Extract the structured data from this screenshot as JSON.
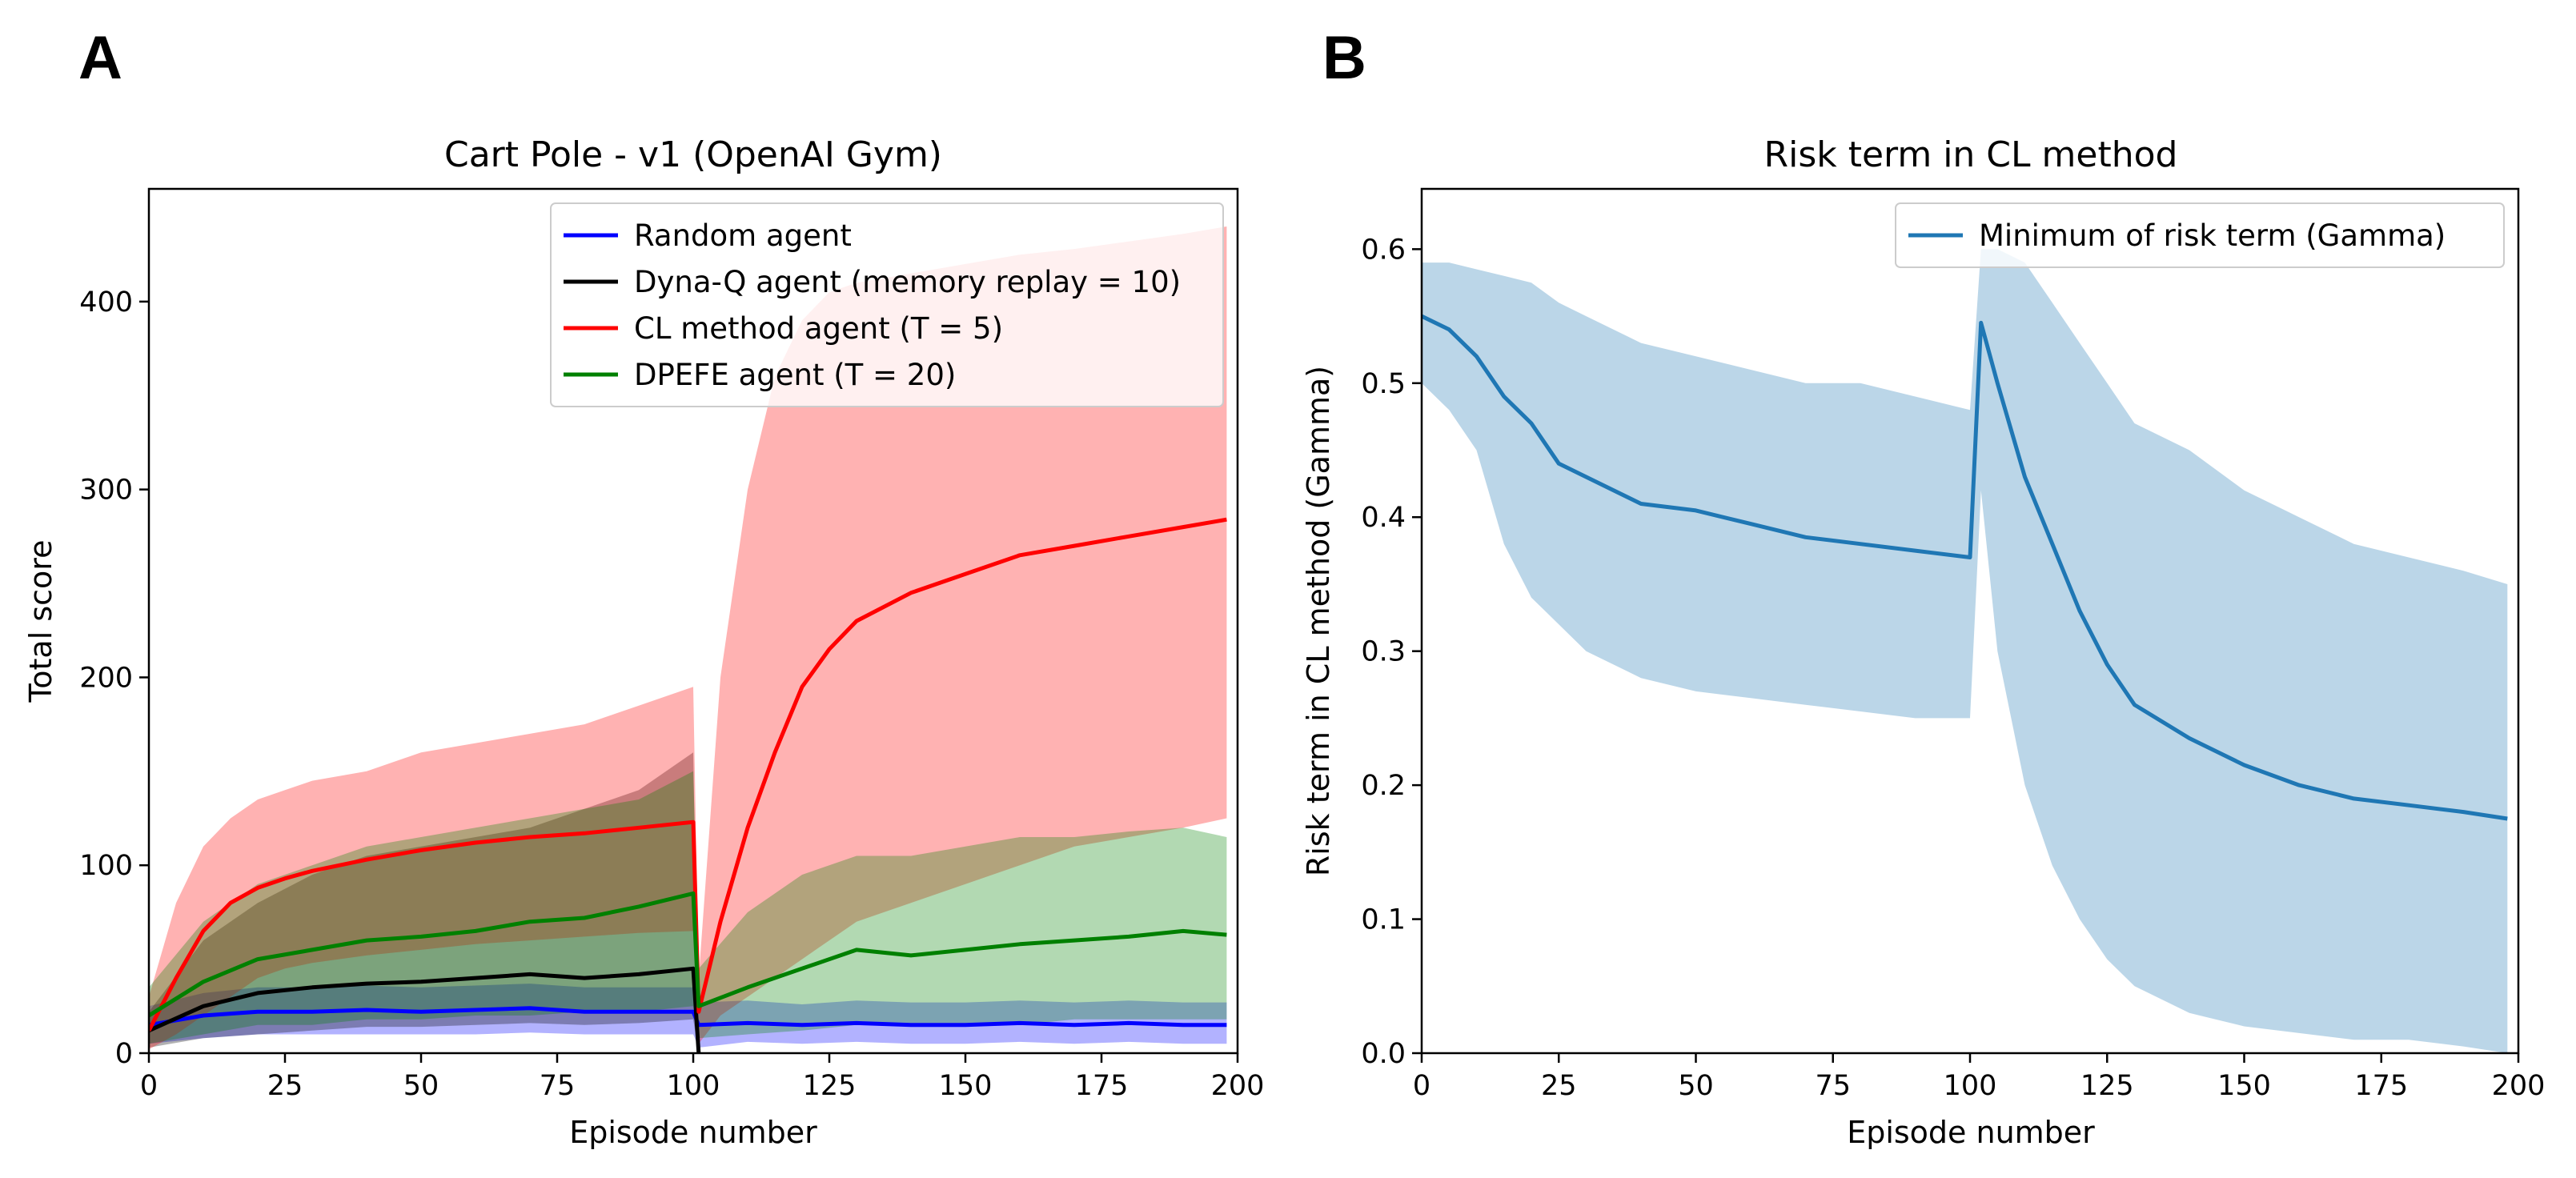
{
  "panels": {
    "a": "A",
    "b": "B"
  },
  "chart_data": [
    {
      "type": "line",
      "title": "Cart Pole - v1 (OpenAI Gym)",
      "xlabel": "Episode number",
      "ylabel": "Total score",
      "xlim": [
        0,
        200
      ],
      "ylim": [
        0,
        460
      ],
      "xticks": [
        0,
        25,
        50,
        75,
        100,
        125,
        150,
        175,
        200
      ],
      "yticks": [
        0,
        100,
        200,
        300,
        400
      ],
      "legend_position": "top-right",
      "series": [
        {
          "name": "Random agent",
          "color": "#0000ff",
          "x": [
            0,
            10,
            20,
            30,
            40,
            50,
            60,
            70,
            80,
            90,
            100,
            101,
            110,
            120,
            130,
            140,
            150,
            160,
            170,
            180,
            190,
            198
          ],
          "values": [
            15,
            20,
            22,
            22,
            23,
            22,
            23,
            24,
            22,
            22,
            22,
            15,
            16,
            15,
            16,
            15,
            15,
            16,
            15,
            16,
            15,
            15
          ],
          "band_lower": [
            5,
            8,
            10,
            10,
            10,
            10,
            10,
            11,
            10,
            10,
            10,
            3,
            6,
            5,
            6,
            5,
            5,
            6,
            5,
            6,
            5,
            5
          ],
          "band_upper": [
            25,
            32,
            35,
            35,
            36,
            35,
            36,
            37,
            35,
            35,
            35,
            27,
            28,
            26,
            28,
            27,
            27,
            28,
            27,
            28,
            27,
            27
          ]
        },
        {
          "name": "Dyna-Q agent (memory replay = 10)",
          "color": "#000000",
          "x": [
            0,
            10,
            20,
            30,
            40,
            50,
            60,
            70,
            80,
            90,
            100,
            101
          ],
          "values": [
            12,
            25,
            32,
            35,
            37,
            38,
            40,
            42,
            40,
            42,
            45,
            0
          ],
          "band_lower": [
            3,
            8,
            10,
            12,
            14,
            14,
            15,
            16,
            15,
            16,
            18,
            0
          ],
          "band_upper": [
            22,
            60,
            80,
            95,
            105,
            110,
            115,
            120,
            130,
            140,
            160,
            0
          ]
        },
        {
          "name": "CL method agent (T = 5)",
          "color": "#ff0000",
          "x": [
            0,
            5,
            10,
            15,
            20,
            25,
            30,
            40,
            50,
            60,
            70,
            80,
            90,
            100,
            101,
            105,
            110,
            115,
            120,
            125,
            130,
            140,
            150,
            160,
            170,
            180,
            190,
            198
          ],
          "values": [
            12,
            40,
            65,
            80,
            88,
            93,
            97,
            103,
            108,
            112,
            115,
            117,
            120,
            123,
            22,
            70,
            120,
            160,
            195,
            215,
            230,
            245,
            255,
            265,
            270,
            275,
            280,
            284
          ],
          "band_lower": [
            2,
            10,
            20,
            30,
            40,
            45,
            48,
            52,
            55,
            58,
            60,
            62,
            64,
            65,
            5,
            20,
            30,
            40,
            50,
            60,
            70,
            80,
            90,
            100,
            110,
            115,
            120,
            125
          ],
          "band_upper": [
            30,
            80,
            110,
            125,
            135,
            140,
            145,
            150,
            160,
            165,
            170,
            175,
            185,
            195,
            40,
            200,
            300,
            360,
            390,
            405,
            410,
            415,
            420,
            425,
            428,
            432,
            436,
            440
          ]
        },
        {
          "name": "DPEFE agent (T = 20)",
          "color": "#008000",
          "x": [
            0,
            10,
            20,
            30,
            40,
            50,
            60,
            70,
            80,
            90,
            100,
            101,
            110,
            120,
            130,
            140,
            150,
            160,
            170,
            180,
            190,
            198
          ],
          "values": [
            20,
            38,
            50,
            55,
            60,
            62,
            65,
            70,
            72,
            78,
            85,
            25,
            35,
            45,
            55,
            52,
            55,
            58,
            60,
            62,
            65,
            63
          ],
          "band_lower": [
            5,
            10,
            15,
            15,
            18,
            18,
            20,
            20,
            22,
            22,
            25,
            8,
            10,
            12,
            15,
            15,
            15,
            15,
            18,
            18,
            18,
            18
          ],
          "band_upper": [
            35,
            70,
            90,
            100,
            110,
            115,
            120,
            125,
            130,
            135,
            150,
            45,
            75,
            95,
            105,
            105,
            110,
            115,
            115,
            118,
            120,
            115
          ]
        }
      ]
    },
    {
      "type": "line",
      "title": "Risk term in CL method",
      "xlabel": "Episode number",
      "ylabel": "Risk term in CL method (Gamma)",
      "xlim": [
        0,
        200
      ],
      "ylim": [
        0,
        0.645
      ],
      "xticks": [
        0,
        25,
        50,
        75,
        100,
        125,
        150,
        175,
        200
      ],
      "yticks": [
        0.0,
        0.1,
        0.2,
        0.3,
        0.4,
        0.5,
        0.6
      ],
      "legend_position": "top-right",
      "series": [
        {
          "name": "Minimum of risk term (Gamma)",
          "color": "#1f77b4",
          "x": [
            0,
            5,
            10,
            15,
            20,
            25,
            30,
            40,
            50,
            60,
            70,
            80,
            90,
            100,
            102,
            105,
            110,
            115,
            120,
            125,
            130,
            140,
            150,
            160,
            170,
            180,
            190,
            198
          ],
          "values": [
            0.55,
            0.54,
            0.52,
            0.49,
            0.47,
            0.44,
            0.43,
            0.41,
            0.405,
            0.395,
            0.385,
            0.38,
            0.375,
            0.37,
            0.545,
            0.5,
            0.43,
            0.38,
            0.33,
            0.29,
            0.26,
            0.235,
            0.215,
            0.2,
            0.19,
            0.185,
            0.18,
            0.175
          ],
          "band_lower": [
            0.5,
            0.48,
            0.45,
            0.38,
            0.34,
            0.32,
            0.3,
            0.28,
            0.27,
            0.265,
            0.26,
            0.255,
            0.25,
            0.25,
            0.42,
            0.3,
            0.2,
            0.14,
            0.1,
            0.07,
            0.05,
            0.03,
            0.02,
            0.015,
            0.01,
            0.01,
            0.005,
            0.0
          ],
          "band_upper": [
            0.59,
            0.59,
            0.585,
            0.58,
            0.575,
            0.56,
            0.55,
            0.53,
            0.52,
            0.51,
            0.5,
            0.5,
            0.49,
            0.48,
            0.6,
            0.6,
            0.59,
            0.56,
            0.53,
            0.5,
            0.47,
            0.45,
            0.42,
            0.4,
            0.38,
            0.37,
            0.36,
            0.35
          ]
        }
      ]
    }
  ]
}
